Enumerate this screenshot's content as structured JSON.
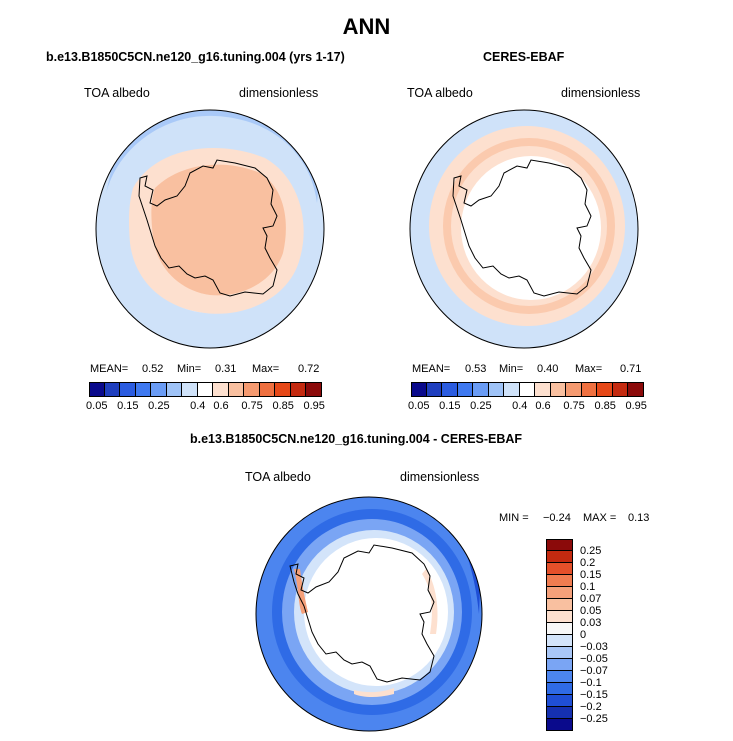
{
  "figure": {
    "title": "ANN"
  },
  "panels": [
    {
      "title": "b.e13.B1850C5CN.ne120_g16.tuning.004 (yrs 1-17)",
      "left_label": "TOA albedo",
      "right_label": "dimensionless",
      "stats": {
        "mean_label": "MEAN=",
        "mean": "0.52",
        "min_label": "Min=",
        "min": "0.31",
        "max_label": "Max=",
        "max": "0.72"
      }
    },
    {
      "title": "CERES-EBAF",
      "left_label": "TOA albedo",
      "right_label": "dimensionless",
      "stats": {
        "mean_label": "MEAN=",
        "mean": "0.53",
        "min_label": "Min=",
        "min": "0.40",
        "max_label": "Max=",
        "max": "0.71"
      }
    },
    {
      "title": "b.e13.B1850C5CN.ne120_g16.tuning.004 - CERES-EBAF",
      "left_label": "TOA albedo",
      "right_label": "dimensionless",
      "stats": {
        "min_label": "MIN =",
        "min": "−0.24",
        "max_label": "MAX =",
        "max": "0.13"
      }
    }
  ],
  "colorbar_abs": {
    "colors": [
      "#0a0a8c",
      "#1f3fbf",
      "#2b5ce0",
      "#3f79f0",
      "#6a9cf5",
      "#9fc3f7",
      "#cfe2f9",
      "#ffffff",
      "#fde0cf",
      "#f9c0a0",
      "#f59a70",
      "#ef7040",
      "#e64818",
      "#c42a10",
      "#8b0a0a"
    ],
    "tick_labels": [
      "0.05",
      "0.15",
      "0.25",
      "0.4",
      "0.6",
      "0.75",
      "0.85",
      "0.95"
    ]
  },
  "colorbar_diff": {
    "colors": [
      "#0a0a8c",
      "#1530b0",
      "#1f4fd6",
      "#2f6be6",
      "#4c85ef",
      "#7aa5f4",
      "#a9c7f7",
      "#d3e4fa",
      "#f7f7f7",
      "#fde0cf",
      "#f9c0a0",
      "#f5a07a",
      "#f07c50",
      "#e4502a",
      "#c42a10",
      "#8b0a0a"
    ],
    "tick_labels": [
      "0.25",
      "0.2",
      "0.15",
      "0.1",
      "0.07",
      "0.05",
      "0.03",
      "0",
      "−0.03",
      "−0.05",
      "−0.07",
      "−0.1",
      "−0.15",
      "−0.2",
      "−0.25"
    ]
  },
  "chart_data": [
    {
      "type": "heatmap",
      "title": "b.e13.B1850C5CN.ne120_g16.tuning.004 (yrs 1-17)",
      "variable": "TOA albedo",
      "units": "dimensionless",
      "projection": "south polar stereographic",
      "levels": [
        0.05,
        0.1,
        0.15,
        0.2,
        0.25,
        0.3,
        0.4,
        0.5,
        0.6,
        0.7,
        0.75,
        0.8,
        0.85,
        0.9,
        0.95
      ],
      "mean": 0.52,
      "min": 0.31,
      "max": 0.72
    },
    {
      "type": "heatmap",
      "title": "CERES-EBAF",
      "variable": "TOA albedo",
      "units": "dimensionless",
      "projection": "south polar stereographic",
      "levels": [
        0.05,
        0.1,
        0.15,
        0.2,
        0.25,
        0.3,
        0.4,
        0.5,
        0.6,
        0.7,
        0.75,
        0.8,
        0.85,
        0.9,
        0.95
      ],
      "mean": 0.53,
      "min": 0.4,
      "max": 0.71
    },
    {
      "type": "heatmap",
      "title": "b.e13.B1850C5CN.ne120_g16.tuning.004 - CERES-EBAF",
      "variable": "TOA albedo",
      "units": "dimensionless",
      "projection": "south polar stereographic",
      "levels": [
        -0.25,
        -0.2,
        -0.15,
        -0.1,
        -0.07,
        -0.05,
        -0.03,
        0,
        0.03,
        0.05,
        0.07,
        0.1,
        0.15,
        0.2,
        0.25
      ],
      "min": -0.24,
      "max": 0.13
    }
  ]
}
